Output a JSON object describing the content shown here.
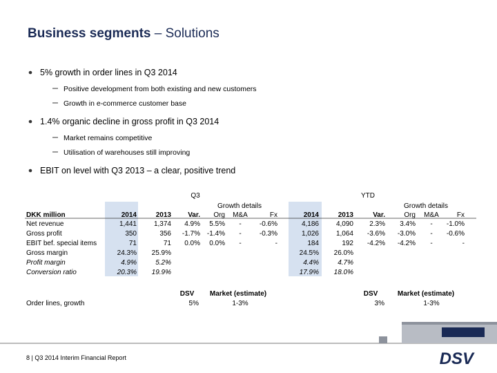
{
  "title": {
    "bold": "Business segments",
    "rest": "– Solutions"
  },
  "bullets": [
    {
      "text": "5% growth in order lines in Q3 2014",
      "sub": [
        "Positive development from both existing and new customers",
        "Growth in e-commerce customer base"
      ]
    },
    {
      "text": "1.4% organic decline in gross profit in Q3 2014",
      "sub": [
        "Market remains competitive",
        "Utilisation of warehouses still improving"
      ]
    },
    {
      "text": "EBIT on level with Q3 2013 – a clear, positive trend",
      "sub": []
    }
  ],
  "table": {
    "q3_label": "Q3",
    "ytd_label": "YTD",
    "growth_details": [
      "Growth details",
      "Growth details"
    ],
    "header": [
      "DKK million",
      "2014",
      "2013",
      "Var.",
      "Org",
      "M&A",
      "Fx",
      "2014",
      "2013",
      "Var.",
      "Org",
      "M&A",
      "Fx"
    ],
    "rows": [
      [
        "Net revenue",
        "1,441",
        "1,374",
        "4.9%",
        "5.5%",
        "-",
        "-0.6%",
        "4,186",
        "4,090",
        "2.3%",
        "3.4%",
        "-",
        "-1.0%"
      ],
      [
        "Gross profit",
        "350",
        "356",
        "-1.7%",
        "-1.4%",
        "-",
        "-0.3%",
        "1,026",
        "1,064",
        "-3.6%",
        "-3.0%",
        "-",
        "-0.6%"
      ],
      [
        "EBIT bef. special items",
        "71",
        "71",
        "0.0%",
        "0.0%",
        "-",
        "-",
        "184",
        "192",
        "-4.2%",
        "-4.2%",
        "-",
        "-"
      ],
      [
        "Gross margin",
        "24.3%",
        "25.9%",
        null,
        null,
        null,
        null,
        "24.5%",
        "26.0%",
        null,
        null,
        null,
        null
      ],
      [
        "Profit margin",
        "4.9%",
        "5.2%",
        null,
        null,
        null,
        null,
        "4.4%",
        "4.7%",
        null,
        null,
        null,
        null
      ],
      [
        "Conversion ratio",
        "20.3%",
        "19.9%",
        null,
        null,
        null,
        null,
        "17.9%",
        "18.0%",
        null,
        null,
        null,
        null
      ]
    ]
  },
  "order_lines": {
    "label": "Order lines, growth",
    "q3": {
      "dsv_label": "DSV",
      "market_label": "Market (estimate)",
      "dsv": "5%",
      "market": "1-3%"
    },
    "ytd": {
      "dsv_label": "DSV",
      "market_label": "Market (estimate)",
      "dsv": "3%",
      "market": "1-3%"
    }
  },
  "footer": "8 | Q3 2014 Interim Financial Report",
  "logo": "DSV"
}
